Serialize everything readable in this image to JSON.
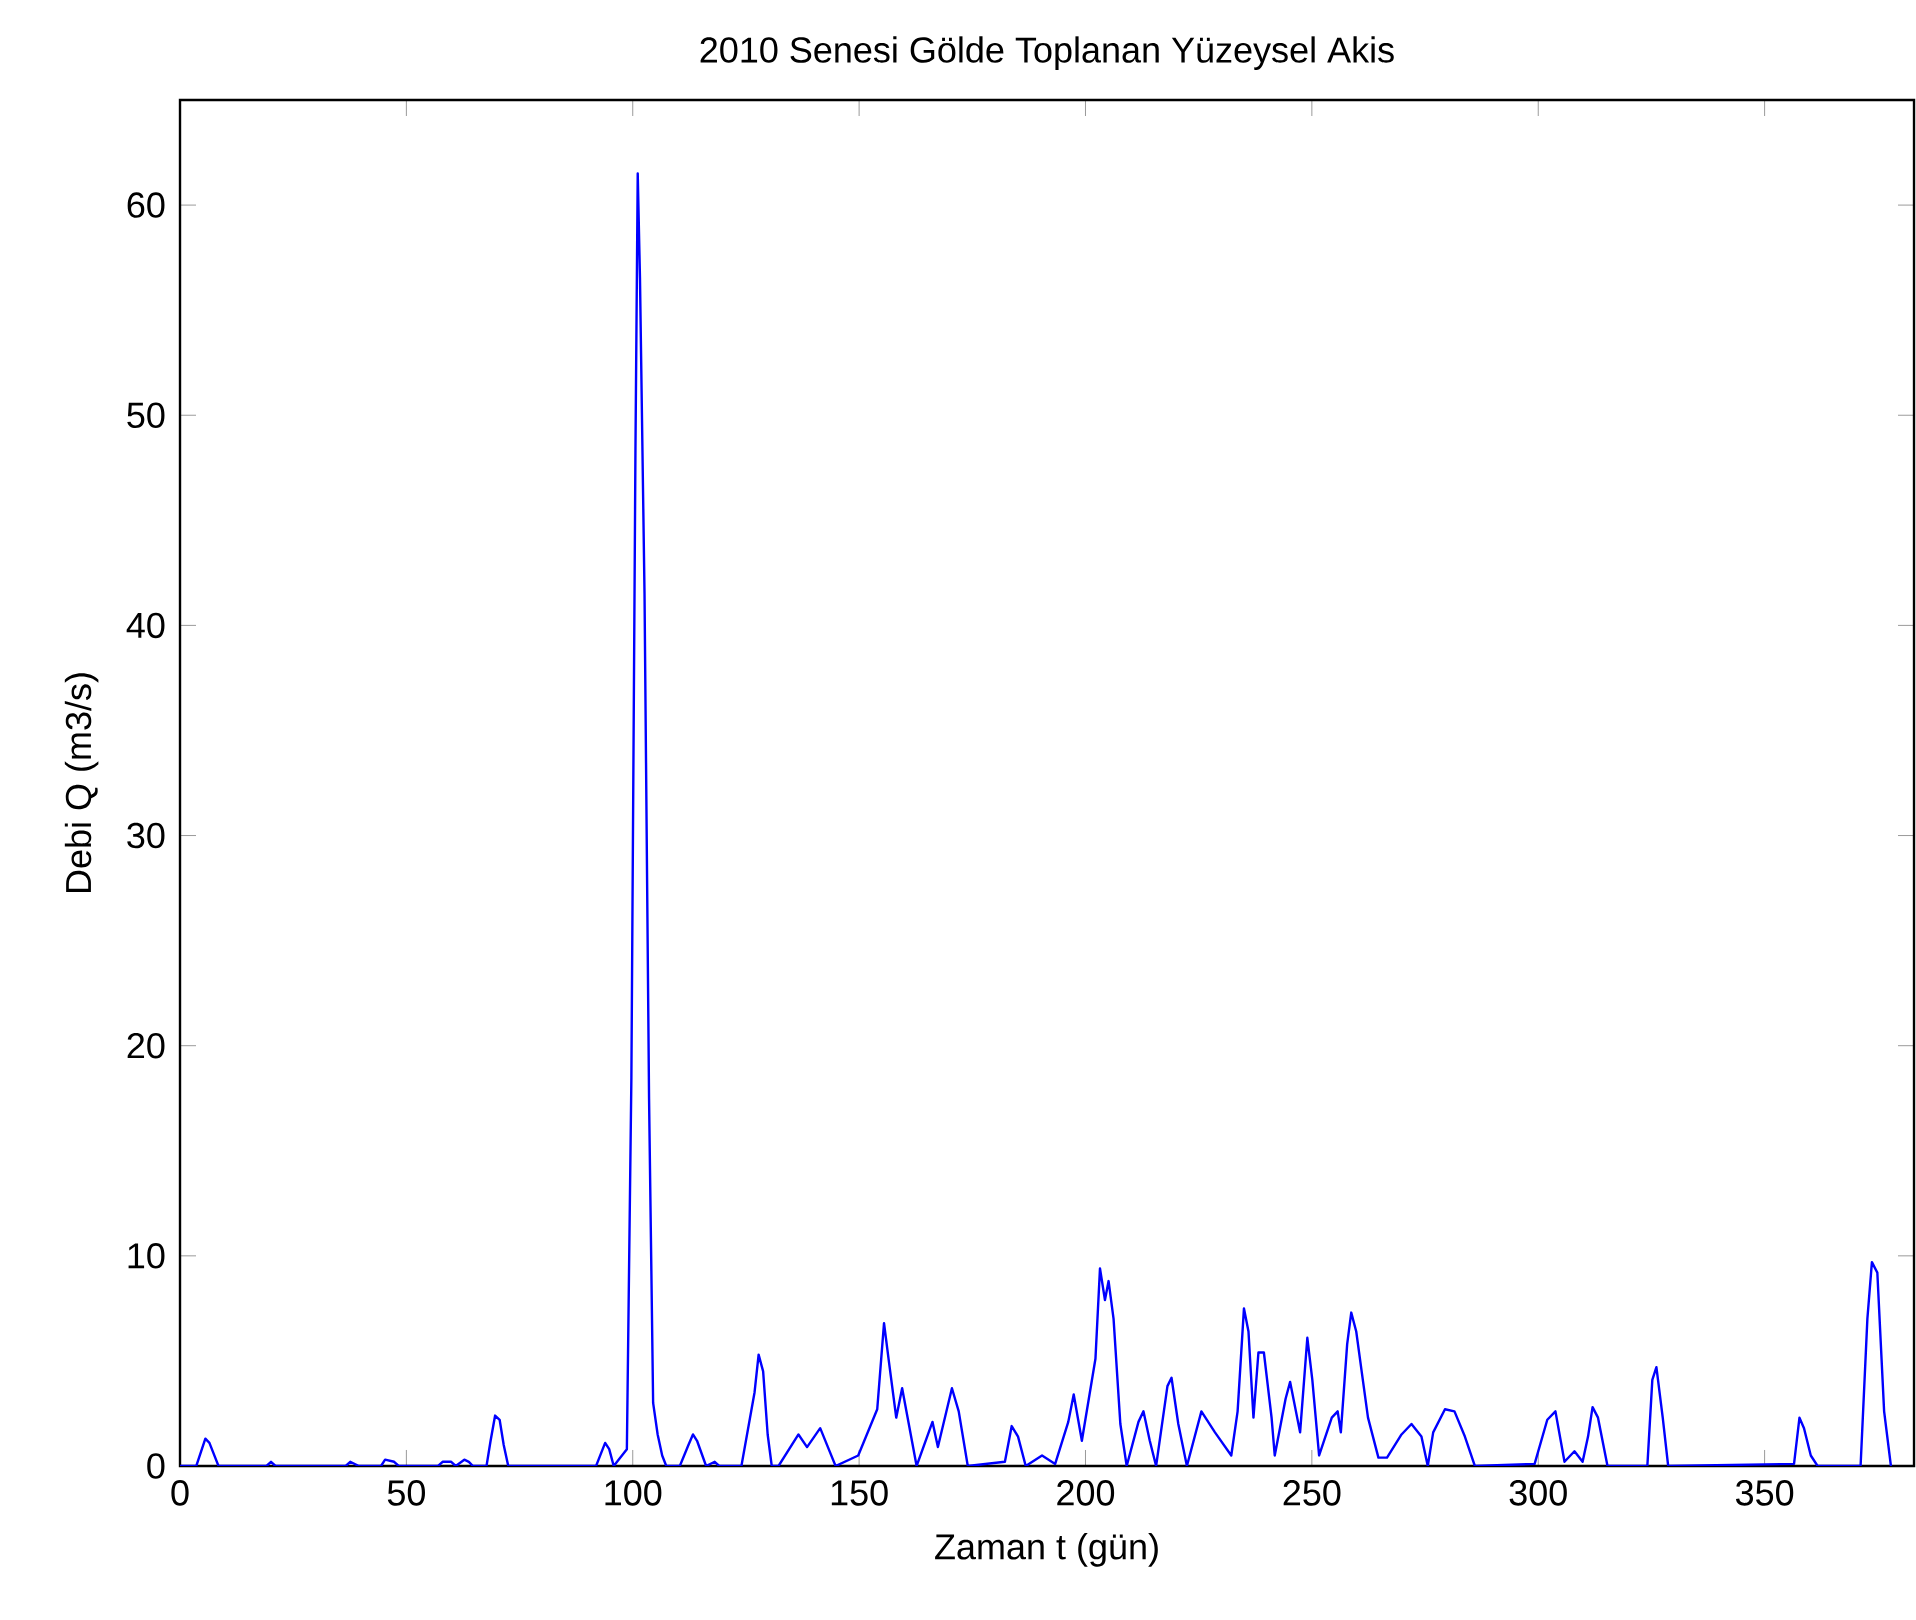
{
  "chart_data": {
    "type": "line",
    "title": "2010 Senesi Gölde Toplanan Yüzeysel Akis",
    "xlabel": "Zaman t (gün)",
    "ylabel": "Debi Q (m3/s)",
    "color": "#0000ff",
    "x": [
      0,
      3.6,
      5.6,
      6.5,
      8.5,
      19.1,
      20.1,
      21.1,
      36.6,
      37.6,
      39.5,
      44.4,
      45.3,
      47.3,
      48.3,
      57,
      58,
      59.9,
      60.9,
      62.8,
      63.8,
      64.7,
      67.7,
      68.6,
      69.6,
      70.6,
      71.5,
      72.5,
      91.9,
      93.9,
      94.8,
      95.8,
      98.7,
      99.7,
      100.6,
      101.1,
      101.6,
      102.6,
      103.6,
      104.5,
      105.5,
      106.5,
      107.4,
      110.4,
      112.3,
      113.3,
      114.2,
      116.2,
      118.1,
      119.1,
      124,
      126.9,
      127.8,
      128.8,
      129.8,
      130.7,
      132.2,
      136.6,
      138.5,
      141.4,
      144.8,
      149.8,
      154,
      155.5,
      156.5,
      158.2,
      159.5,
      162.7,
      166.2,
      167.4,
      170.5,
      172,
      174,
      182.2,
      183.7,
      185.1,
      186.8,
      190.4,
      193.3,
      196.2,
      197.4,
      199.2,
      202.2,
      203.2,
      204.3,
      205.1,
      206.2,
      207.7,
      209.1,
      211.7,
      212.8,
      214.2,
      215.6,
      218.1,
      219,
      220.5,
      222.4,
      225.6,
      228.6,
      232.2,
      233.6,
      235,
      236,
      237.1,
      238.2,
      239.4,
      241.1,
      241.8,
      244.2,
      245.2,
      247.4,
      249,
      250.1,
      251.6,
      254.4,
      255.7,
      256.4,
      257.8,
      258.7,
      259.8,
      261,
      262.4,
      264.7,
      266.6,
      269.8,
      272,
      274.2,
      275.6,
      276.8,
      279.4,
      281.5,
      283.8,
      286,
      299.2,
      302,
      303.8,
      305.8,
      308,
      309.8,
      311,
      312,
      313.2,
      315.3,
      324.1,
      325.2,
      326.1,
      327.5,
      328.7,
      356.5,
      357.7,
      358.7,
      360.2,
      361.7,
      371.2,
      372.7,
      373.7,
      374.9,
      376.4,
      377.9
    ],
    "values": [
      0,
      0,
      1.3,
      1.1,
      0,
      0,
      0.2,
      0,
      0,
      0.2,
      0,
      0,
      0.3,
      0.2,
      0,
      0,
      0.2,
      0.2,
      0,
      0.3,
      0.2,
      0,
      0,
      1.2,
      2.4,
      2.2,
      1,
      0,
      0,
      1.1,
      0.8,
      0,
      0.8,
      18.5,
      48.5,
      61.5,
      56.5,
      41.5,
      17.5,
      3,
      1.5,
      0.5,
      0,
      0,
      1,
      1.5,
      1.2,
      0,
      0.2,
      0,
      0,
      3.5,
      5.3,
      4.5,
      1.5,
      0,
      0,
      1.5,
      0.9,
      1.8,
      0,
      0.5,
      2.7,
      6.8,
      5.1,
      2.3,
      3.7,
      0,
      2.1,
      0.9,
      3.7,
      2.6,
      0,
      0.2,
      1.9,
      1.4,
      0,
      0.5,
      0.1,
      2.1,
      3.4,
      1.2,
      5.1,
      9.4,
      7.9,
      8.8,
      7,
      2,
      0,
      2.1,
      2.6,
      1.2,
      0,
      3.8,
      4.2,
      2,
      0,
      2.6,
      1.6,
      0.5,
      2.6,
      7.5,
      6.4,
      2.3,
      5.4,
      5.4,
      2.3,
      0.5,
      3.2,
      4,
      1.6,
      6.1,
      4.1,
      0.5,
      2.3,
      2.6,
      1.6,
      5.8,
      7.3,
      6.4,
      4.5,
      2.3,
      0.4,
      0.4,
      1.5,
      2,
      1.4,
      0,
      1.6,
      2.7,
      2.6,
      1.4,
      0,
      0.1,
      2.2,
      2.6,
      0.2,
      0.7,
      0.2,
      1.4,
      2.8,
      2.3,
      0,
      0,
      4.1,
      4.7,
      2.3,
      0,
      0.1,
      2.3,
      1.8,
      0.5,
      0,
      0,
      7,
      9.7,
      9.2,
      2.6,
      0
    ],
    "xlim": [
      0,
      383
    ],
    "ylim": [
      0,
      65
    ],
    "xticks": [
      0,
      50,
      100,
      150,
      200,
      250,
      300,
      350
    ],
    "yticks": [
      0,
      10,
      20,
      30,
      40,
      50,
      60
    ]
  }
}
